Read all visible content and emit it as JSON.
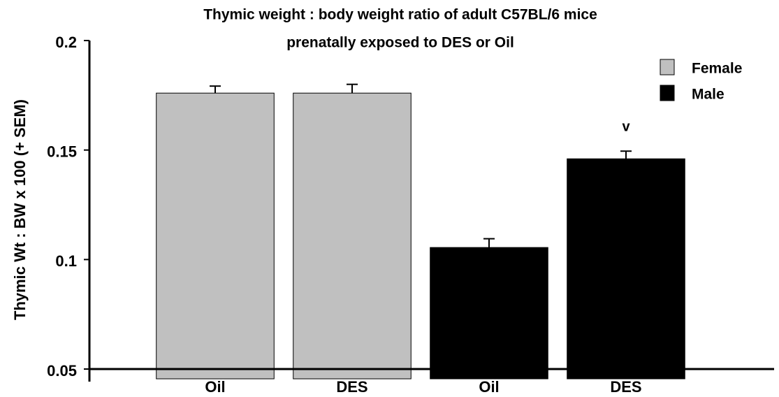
{
  "chart_data": {
    "type": "bar",
    "title": [
      "Thymic weight : body weight ratio of adult C57BL/6 mice",
      "prenatally exposed to DES or Oil"
    ],
    "y_label": "Thymic Wt : BW x 100 (+ SEM)",
    "categories": [
      "Oil",
      "DES",
      "Oil",
      "DES"
    ],
    "series": [
      {
        "name": "Female",
        "color": "#c0c0c0",
        "values": [
          0.176,
          0.176,
          null,
          null
        ],
        "errors": [
          0.0032,
          0.004,
          null,
          null
        ]
      },
      {
        "name": "Male",
        "color": "#000000",
        "values": [
          null,
          null,
          0.1055,
          0.146
        ],
        "errors": [
          null,
          null,
          0.004,
          0.0035
        ]
      }
    ],
    "annotations": [
      {
        "text": "v",
        "category": 3
      }
    ],
    "ylim": [
      0.05,
      0.2
    ],
    "yticks": [
      0.05,
      0.1,
      0.15,
      0.2
    ],
    "legend": "upper right",
    "grid": false
  }
}
